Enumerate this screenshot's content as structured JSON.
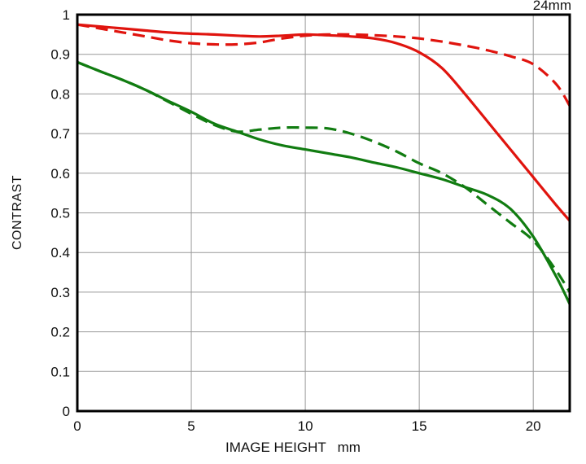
{
  "title": "24mm",
  "axes": {
    "y_label": "CONTRAST",
    "x_label": "IMAGE HEIGHT   mm"
  },
  "colors": {
    "red": "#e0140e",
    "green": "#117c11",
    "grid": "#999999",
    "border": "#000000",
    "background": "#ffffff"
  },
  "chart_data": {
    "type": "line",
    "title": "24mm",
    "xlabel": "IMAGE HEIGHT (mm)",
    "ylabel": "CONTRAST",
    "xlim": [
      0,
      21.6
    ],
    "ylim": [
      0,
      1
    ],
    "grid": true,
    "legend_position": "none",
    "x_ticks": {
      "values": [
        0,
        5,
        10,
        15,
        20
      ],
      "labels": [
        "0",
        "5",
        "10",
        "15",
        "20"
      ]
    },
    "y_ticks": {
      "values": [
        0,
        0.1,
        0.2,
        0.3,
        0.4,
        0.5,
        0.6,
        0.7,
        0.8,
        0.9,
        1
      ],
      "labels": [
        "0",
        "0.1",
        "0.2",
        "0.3",
        "0.4",
        "0.5",
        "0.6",
        "0.7",
        "0.8",
        "0.9",
        "1"
      ]
    },
    "x": [
      0,
      1,
      2,
      3,
      4,
      5,
      6,
      7,
      8,
      9,
      10,
      11,
      12,
      13,
      14,
      15,
      16,
      17,
      18,
      19,
      20,
      21,
      21.6
    ],
    "series": [
      {
        "name": "green-solid",
        "color": "#117c11",
        "style": "solid",
        "values": [
          0.88,
          0.857,
          0.835,
          0.81,
          0.782,
          0.755,
          0.725,
          0.705,
          0.685,
          0.67,
          0.66,
          0.65,
          0.64,
          0.627,
          0.615,
          0.6,
          0.585,
          0.565,
          0.545,
          0.51,
          0.44,
          0.34,
          0.27
        ]
      },
      {
        "name": "green-dashed",
        "color": "#117c11",
        "style": "dashed",
        "values": [
          0.88,
          0.857,
          0.835,
          0.81,
          0.78,
          0.75,
          0.722,
          0.705,
          0.71,
          0.715,
          0.715,
          0.713,
          0.7,
          0.68,
          0.655,
          0.625,
          0.6,
          0.565,
          0.52,
          0.475,
          0.43,
          0.355,
          0.3
        ]
      },
      {
        "name": "red-solid",
        "color": "#e0140e",
        "style": "solid",
        "values": [
          0.975,
          0.97,
          0.965,
          0.96,
          0.955,
          0.952,
          0.95,
          0.947,
          0.945,
          0.947,
          0.95,
          0.948,
          0.945,
          0.94,
          0.928,
          0.905,
          0.865,
          0.8,
          0.73,
          0.66,
          0.59,
          0.52,
          0.48
        ]
      },
      {
        "name": "red-dashed",
        "color": "#e0140e",
        "style": "dashed",
        "values": [
          0.975,
          0.965,
          0.955,
          0.945,
          0.935,
          0.928,
          0.925,
          0.925,
          0.93,
          0.94,
          0.947,
          0.95,
          0.95,
          0.948,
          0.945,
          0.94,
          0.932,
          0.922,
          0.91,
          0.895,
          0.875,
          0.825,
          0.77
        ]
      }
    ]
  }
}
